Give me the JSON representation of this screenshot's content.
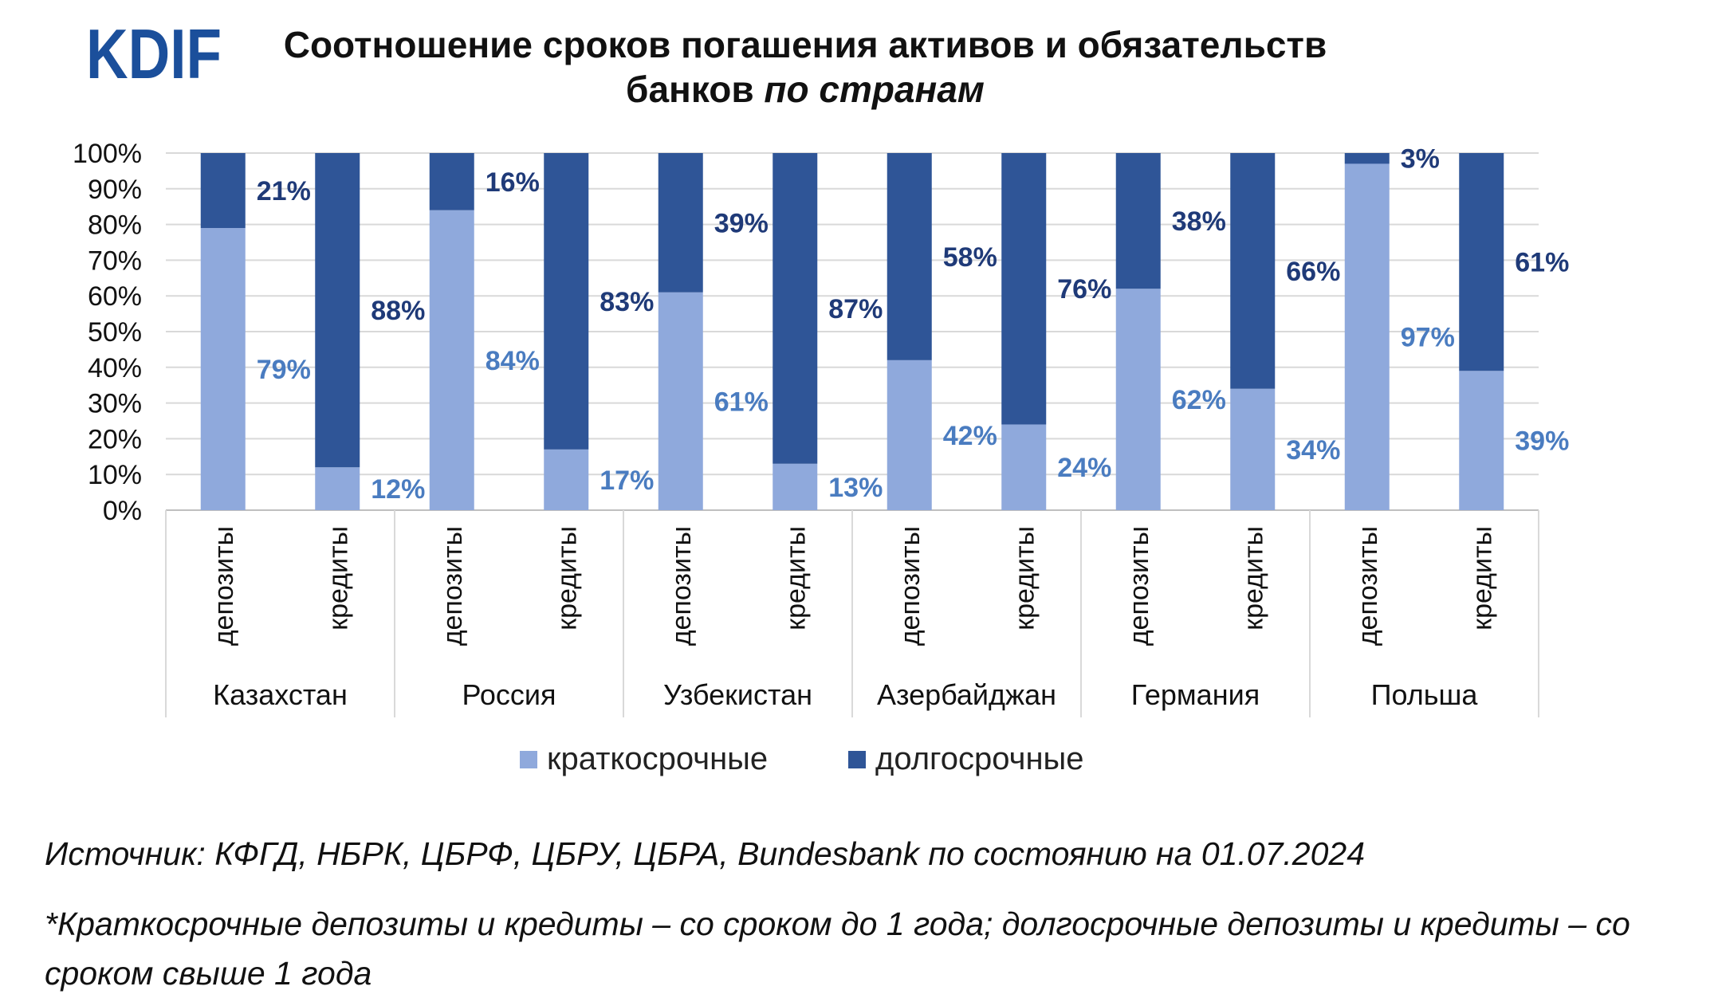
{
  "logo_text": "KDIF",
  "title_line1": "Соотношение сроков погашения активов и обязательств",
  "title_line2_normal": "банков ",
  "title_line2_italic": "по странам",
  "legend": [
    {
      "label": "краткосрочные",
      "color": "#8FA9DC"
    },
    {
      "label": "долгосрочные",
      "color": "#2F5597"
    }
  ],
  "source": "Источник: КФГД, НБРК, ЦБРФ, ЦБРУ, ЦБРА, Bundesbank по состоянию на 01.07.2024",
  "footnote": "*Краткосрочные депозиты и кредиты – со сроком до 1 года; долгосрочные депозиты и кредиты – со сроком свыше 1 года",
  "chart_data": {
    "type": "bar",
    "stacked": true,
    "percent": true,
    "ylim": [
      0,
      100
    ],
    "y_ticks": [
      "0%",
      "10%",
      "20%",
      "30%",
      "40%",
      "50%",
      "60%",
      "70%",
      "80%",
      "90%",
      "100%"
    ],
    "grid": true,
    "legend_position": "bottom",
    "groups": [
      "Казахстан",
      "Россия",
      "Узбекистан",
      "Азербайджан",
      "Германия",
      "Польша"
    ],
    "subcategories": [
      "депозиты",
      "кредиты"
    ],
    "colors": {
      "short": "#8FA9DC",
      "long": "#2F5597",
      "short_label": "#4A7CC0",
      "long_label": "#1F3A78"
    },
    "series": [
      {
        "name": "краткосрочные",
        "values": [
          79,
          12,
          84,
          17,
          61,
          13,
          42,
          24,
          62,
          34,
          97,
          39
        ],
        "labels": [
          "79%",
          "12%",
          "84%",
          "17%",
          "61%",
          "13%",
          "42%",
          "24%",
          "62%",
          "34%",
          "97%",
          "39%"
        ]
      },
      {
        "name": "долгосрочные",
        "values": [
          21,
          88,
          16,
          83,
          39,
          87,
          58,
          76,
          38,
          66,
          3,
          61
        ],
        "labels": [
          "21%",
          "88%",
          "16%",
          "83%",
          "39%",
          "87%",
          "58%",
          "76%",
          "38%",
          "66%",
          "3%",
          "61%"
        ]
      }
    ]
  }
}
